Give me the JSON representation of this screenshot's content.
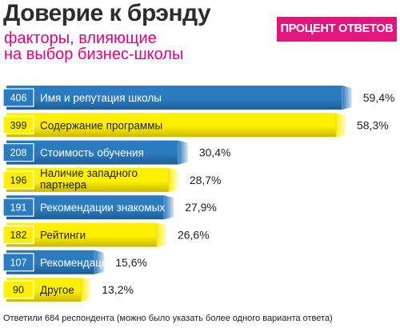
{
  "title": "Доверие к брэнду",
  "subtitle_lines": [
    "факторы, влияющие",
    "на выбор бизнес-школы"
  ],
  "legend_label": "ПРОЦЕНТ ОТВЕТОВ",
  "footnote": "Ответили 684 респондента (можно было указать более одного варианта ответа)",
  "colors": {
    "blue": "#2b7bc0",
    "yellow": "#fff001",
    "title": "#2d2d2d",
    "accent": "#e4007e",
    "legend_bg": "#e3157d",
    "text": "#1e1e1e"
  },
  "chart_data": {
    "type": "bar",
    "orientation": "horizontal",
    "categories": [
      "Имя и репутация школы",
      "Содержание программы",
      "Стоимость обучения",
      "Наличие западного партнера",
      "Рекомендации знакомых",
      "Рейтинги",
      "Рекомендации коллег",
      "Другое"
    ],
    "category_label_lines": [
      [
        "Имя и репутация школы"
      ],
      [
        "Содержание программы"
      ],
      [
        "Стоимость обучения"
      ],
      [
        "Наличие западного",
        "партнера"
      ],
      [
        "Рекомендации знакомых"
      ],
      [
        "Рейтинги"
      ],
      [
        "Рекомендации коллег"
      ],
      [
        "Другое"
      ]
    ],
    "counts": [
      406,
      399,
      208,
      196,
      191,
      182,
      107,
      90
    ],
    "values": [
      59.4,
      58.3,
      30.4,
      28.7,
      27.9,
      26.6,
      15.6,
      13.2
    ],
    "value_labels": [
      "59,4%",
      "58,3%",
      "30,4%",
      "28,7%",
      "27,9%",
      "26,6%",
      "15,6%",
      "13,2%"
    ],
    "row_colors": [
      "blue",
      "yellow",
      "blue",
      "yellow",
      "blue",
      "yellow",
      "blue",
      "yellow"
    ],
    "unit": "%",
    "sorted": "descending"
  }
}
